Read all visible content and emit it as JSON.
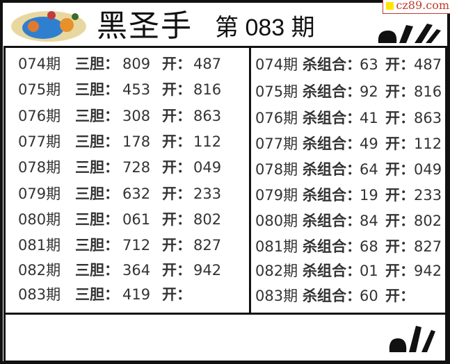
{
  "header": {
    "title": "黑圣手",
    "issue_label": "第 083 期",
    "watermark": "cz89.com"
  },
  "colors": {
    "watermark": "#c0392b",
    "watermark_square": "#ffe600",
    "text": "#333333",
    "border": "#111111"
  },
  "left_panel": {
    "label": "三胆：",
    "open_label": "开：",
    "rows": [
      {
        "period": "074期",
        "pick": "809",
        "open": "487"
      },
      {
        "period": "075期",
        "pick": "453",
        "open": "816"
      },
      {
        "period": "076期",
        "pick": "308",
        "open": "863"
      },
      {
        "period": "077期",
        "pick": "178",
        "open": "112"
      },
      {
        "period": "078期",
        "pick": "728",
        "open": "049"
      },
      {
        "period": "079期",
        "pick": "632",
        "open": "233"
      },
      {
        "period": "080期",
        "pick": "061",
        "open": "802"
      },
      {
        "period": "081期",
        "pick": "712",
        "open": "827"
      },
      {
        "period": "082期",
        "pick": "364",
        "open": "942"
      },
      {
        "period": "083期",
        "pick": "419",
        "open": ""
      }
    ]
  },
  "right_panel": {
    "label": "杀组合：",
    "open_label": "开：",
    "rows": [
      {
        "period": "074期",
        "pick": "63",
        "open": "487"
      },
      {
        "period": "075期",
        "pick": "92",
        "open": "816"
      },
      {
        "period": "076期",
        "pick": "41",
        "open": "863"
      },
      {
        "period": "077期",
        "pick": "49",
        "open": "112"
      },
      {
        "period": "078期",
        "pick": "64",
        "open": "049"
      },
      {
        "period": "079期",
        "pick": "19",
        "open": "233"
      },
      {
        "period": "080期",
        "pick": "84",
        "open": "802"
      },
      {
        "period": "081期",
        "pick": "68",
        "open": "827"
      },
      {
        "period": "082期",
        "pick": "01",
        "open": "942"
      },
      {
        "period": "083期",
        "pick": "60",
        "open": ""
      }
    ]
  }
}
